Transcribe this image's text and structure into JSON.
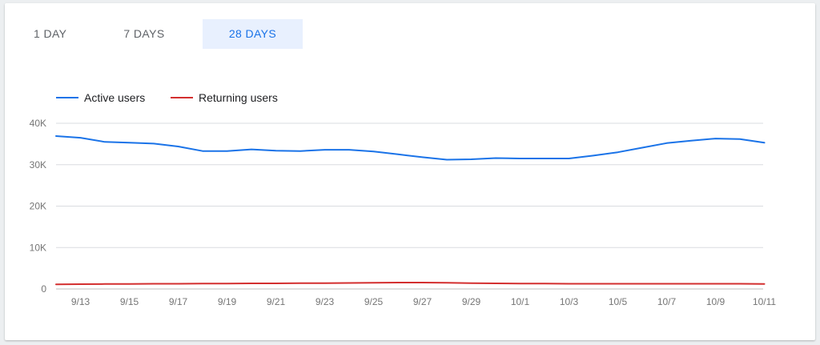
{
  "tabs": [
    {
      "label": "1 DAY",
      "active": false
    },
    {
      "label": "7 DAYS",
      "active": false
    },
    {
      "label": "28 DAYS",
      "active": true
    }
  ],
  "colors": {
    "accent": "#1a73e8",
    "active_users": "#1a73e8",
    "returning_users": "#d32f2f"
  },
  "chart_data": {
    "type": "line",
    "title": "",
    "xlabel": "",
    "ylabel": "",
    "legend_position": "top-left",
    "grid": true,
    "ylim": [
      0,
      40000
    ],
    "y_ticks": [
      0,
      10000,
      20000,
      30000,
      40000
    ],
    "y_tick_labels": [
      "0",
      "10K",
      "20K",
      "30K",
      "40K"
    ],
    "x": [
      "9/12",
      "9/13",
      "9/14",
      "9/15",
      "9/16",
      "9/17",
      "9/18",
      "9/19",
      "9/20",
      "9/21",
      "9/22",
      "9/23",
      "9/24",
      "9/25",
      "9/26",
      "9/27",
      "9/28",
      "9/29",
      "9/30",
      "10/1",
      "10/2",
      "10/3",
      "10/4",
      "10/5",
      "10/6",
      "10/7",
      "10/8",
      "10/9",
      "10/10",
      "10/11"
    ],
    "x_tick_labels": [
      "9/13",
      "9/15",
      "9/17",
      "9/19",
      "9/21",
      "9/23",
      "9/25",
      "9/27",
      "9/29",
      "10/1",
      "10/3",
      "10/5",
      "10/7",
      "10/9",
      "10/11"
    ],
    "series": [
      {
        "name": "Active users",
        "color": "#1a73e8",
        "values": [
          36900,
          36500,
          35500,
          35300,
          35100,
          34400,
          33300,
          33300,
          33700,
          33400,
          33300,
          33600,
          33600,
          33200,
          32500,
          31800,
          31200,
          31300,
          31600,
          31500,
          31500,
          31500,
          32200,
          33000,
          34100,
          35200,
          35800,
          36300,
          36200,
          35300
        ]
      },
      {
        "name": "Returning users",
        "color": "#d32f2f",
        "values": [
          1100,
          1150,
          1200,
          1200,
          1250,
          1250,
          1300,
          1300,
          1350,
          1350,
          1400,
          1400,
          1450,
          1500,
          1550,
          1550,
          1500,
          1400,
          1350,
          1300,
          1300,
          1250,
          1250,
          1250,
          1250,
          1250,
          1250,
          1250,
          1250,
          1200
        ]
      }
    ]
  }
}
